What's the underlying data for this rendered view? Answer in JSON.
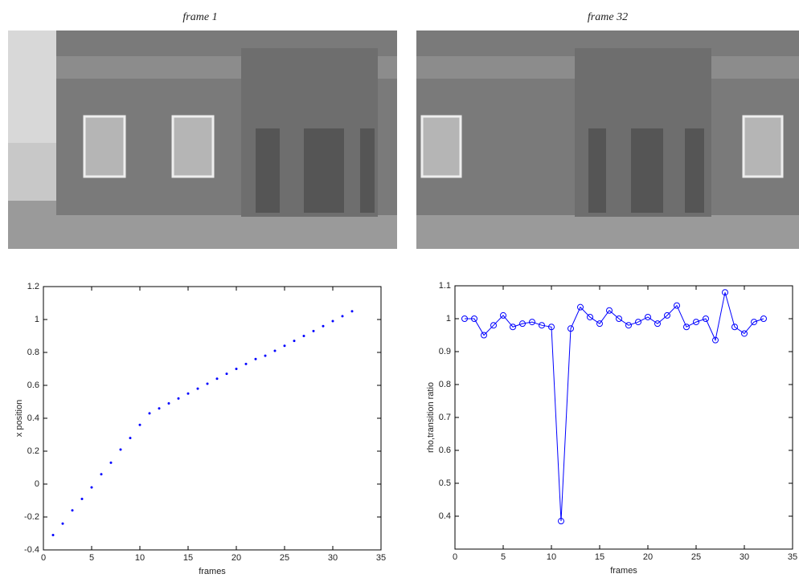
{
  "images": [
    {
      "caption": "frame 1"
    },
    {
      "caption": "frame 32"
    }
  ],
  "chart_data": [
    {
      "type": "scatter",
      "xlabel": "frames",
      "ylabel": "x position",
      "color": "#0000ff",
      "x": [
        1,
        2,
        3,
        4,
        5,
        6,
        7,
        8,
        9,
        10,
        11,
        12,
        13,
        14,
        15,
        16,
        17,
        18,
        19,
        20,
        21,
        22,
        23,
        24,
        25,
        26,
        27,
        28,
        29,
        30,
        31,
        32
      ],
      "values": [
        -0.31,
        -0.24,
        -0.16,
        -0.09,
        -0.02,
        0.06,
        0.13,
        0.21,
        0.28,
        0.36,
        0.43,
        0.46,
        0.49,
        0.52,
        0.55,
        0.58,
        0.61,
        0.64,
        0.67,
        0.7,
        0.73,
        0.76,
        0.78,
        0.81,
        0.84,
        0.87,
        0.9,
        0.93,
        0.96,
        0.99,
        1.02,
        1.05
      ],
      "xlim": [
        0,
        35
      ],
      "xticks": [
        0,
        5,
        10,
        15,
        20,
        25,
        30,
        35
      ],
      "ylim": [
        -0.4,
        1.2
      ],
      "yticks": [
        -0.4,
        -0.2,
        0,
        0.2,
        0.4,
        0.6,
        0.8,
        1,
        1.2
      ]
    },
    {
      "type": "line",
      "xlabel": "frames",
      "ylabel": "rho,transition ratio",
      "color": "#0000ff",
      "x": [
        1,
        2,
        3,
        4,
        5,
        6,
        7,
        8,
        9,
        10,
        11,
        12,
        13,
        14,
        15,
        16,
        17,
        18,
        19,
        20,
        21,
        22,
        23,
        24,
        25,
        26,
        27,
        28,
        29,
        30,
        31,
        32
      ],
      "values": [
        1.0,
        1.0,
        0.95,
        0.98,
        1.01,
        0.975,
        0.985,
        0.99,
        0.98,
        0.975,
        0.385,
        0.97,
        1.035,
        1.005,
        0.985,
        1.025,
        1.0,
        0.98,
        0.99,
        1.005,
        0.985,
        1.01,
        1.04,
        0.975,
        0.99,
        1.0,
        0.935,
        1.08,
        0.975,
        0.955,
        0.99,
        1.0
      ],
      "xlim": [
        0,
        35
      ],
      "xticks": [
        0,
        5,
        10,
        15,
        20,
        25,
        30,
        35
      ],
      "ylim": [
        0.3,
        1.1
      ],
      "yticks": [
        0.4,
        0.5,
        0.6,
        0.7,
        0.8,
        0.9,
        1,
        1.1
      ]
    }
  ]
}
